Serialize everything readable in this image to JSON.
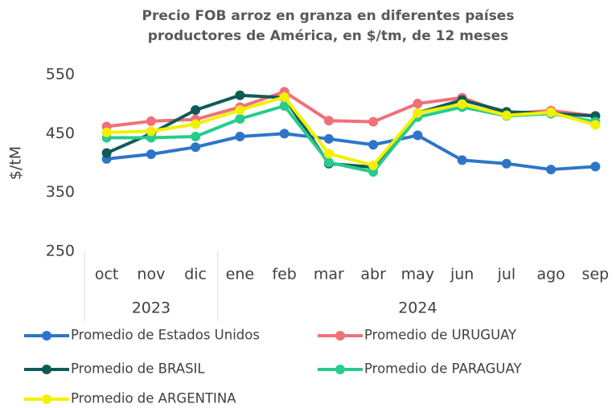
{
  "chart_data": {
    "type": "line",
    "title": [
      "Precio FOB arroz en granza en diferentes países",
      "productores de América, en $/tm, de 12 meses"
    ],
    "y_label": "$/tM",
    "categories": [
      "oct",
      "nov",
      "dic",
      "ene",
      "feb",
      "mar",
      "abr",
      "may",
      "jun",
      "jul",
      "ago",
      "sep"
    ],
    "category_years": [
      "2023",
      "2023",
      "2023",
      "2024",
      "2024",
      "2024",
      "2024",
      "2024",
      "2024",
      "2024",
      "2024",
      "2024"
    ],
    "ylim": [
      250,
      550
    ],
    "yticks": [
      250,
      350,
      450,
      550
    ],
    "grid": false,
    "legend": "bottom",
    "series": [
      {
        "name": "Promedio de Estados Unidos",
        "color": "#2e75c8",
        "values": [
          407,
          415,
          427,
          445,
          450,
          441,
          431,
          447,
          405,
          399,
          389,
          394
        ]
      },
      {
        "name": "Promedio de URUGUAY",
        "color": "#f0707a",
        "values": [
          462,
          471,
          474,
          495,
          521,
          472,
          470,
          501,
          511,
          484,
          489,
          480
        ]
      },
      {
        "name": "Promedio de BRASIL",
        "color": "#0e5c57",
        "values": [
          417,
          450,
          490,
          515,
          511,
          399,
          393,
          485,
          507,
          487,
          484,
          480
        ]
      },
      {
        "name": "Promedio de PARAGUAY",
        "color": "#26cc8c",
        "values": [
          443,
          443,
          445,
          475,
          497,
          401,
          385,
          478,
          495,
          480,
          484,
          470
        ]
      },
      {
        "name": "Promedio de ARGENTINA",
        "color": "#f3f000",
        "values": [
          452,
          454,
          466,
          490,
          512,
          416,
          396,
          485,
          500,
          481,
          486,
          465
        ]
      }
    ]
  }
}
